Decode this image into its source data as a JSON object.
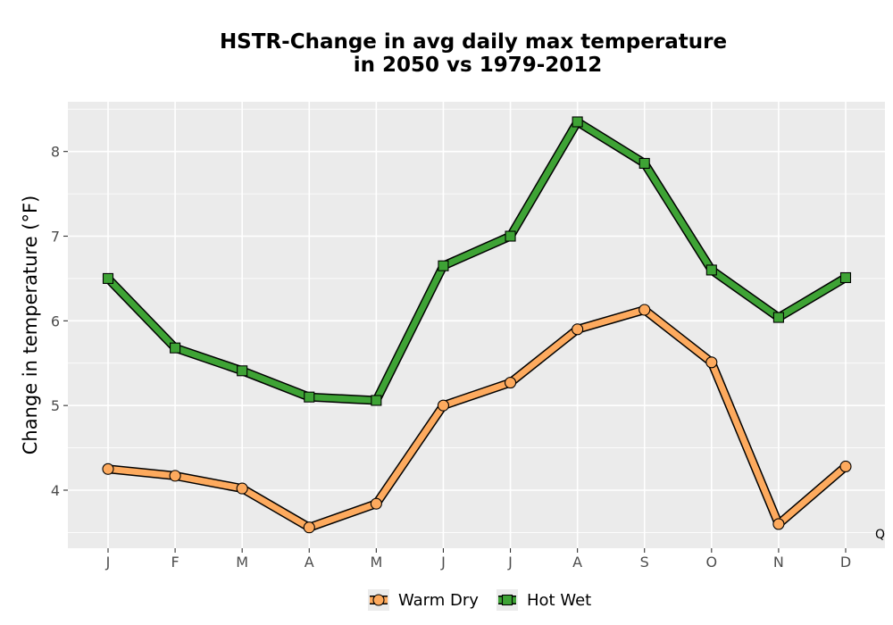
{
  "chart_data": {
    "type": "line",
    "title_line1": "HSTR-Change in avg daily max temperature",
    "title_line2": "in 2050 vs 1979-2012",
    "xlabel": "",
    "ylabel": "Change in temperature (°F)",
    "categories": [
      "J",
      "F",
      "M",
      "A",
      "M",
      "J",
      "J",
      "A",
      "S",
      "O",
      "N",
      "D"
    ],
    "ylim": [
      3.3,
      8.55
    ],
    "yticks": [
      4,
      5,
      6,
      7,
      8
    ],
    "grid": true,
    "legend_position": "bottom",
    "annotation": "Q",
    "series": [
      {
        "name": "Warm Dry",
        "marker": "circle",
        "color": "#fdaa5e",
        "values": [
          4.25,
          4.17,
          4.02,
          3.56,
          3.84,
          5.0,
          5.27,
          5.9,
          6.13,
          5.51,
          3.6,
          4.28
        ]
      },
      {
        "name": "Hot Wet",
        "marker": "square",
        "color": "#3ea335",
        "values": [
          6.5,
          5.68,
          5.41,
          5.1,
          5.06,
          6.65,
          7.0,
          8.35,
          7.86,
          6.6,
          6.04,
          6.51
        ]
      }
    ]
  }
}
